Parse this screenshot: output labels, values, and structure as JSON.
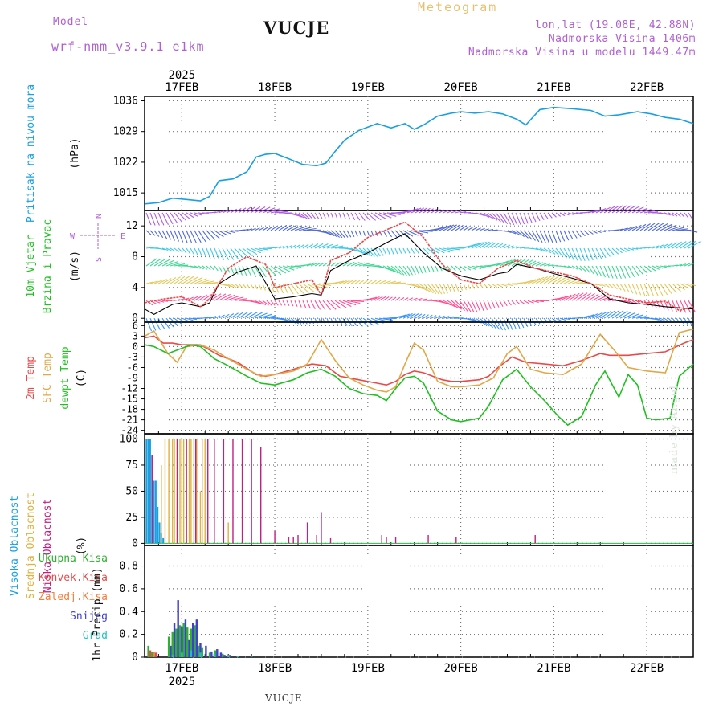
{
  "header": {
    "model_label": "Model",
    "model_name": "wrf-nmm_v3.9.1 e1km",
    "title": "VUCJE",
    "chart_name": "Meteogram",
    "location": "lon,lat (19.08E, 42.88N)",
    "altitude": "Nadmorska Visina 1406m",
    "model_altitude": "Nadmorska Visina u modelu 1449.47m"
  },
  "footer": {
    "station": "VUCJE",
    "credit": "made by Angel"
  },
  "colors": {
    "pressure": "#1aa0e0",
    "temp": "#e84a4a",
    "sfc_temp": "#e0a848",
    "dewpoint": "#20c020",
    "wind_speed": "#000000",
    "wind_gust": "#e84a4a",
    "cloud_high": "#1aa0e0",
    "cloud_mid": "#e0b040",
    "cloud_low": "#c02080",
    "precip_total": "#30b030",
    "precip_conv": "#e84a4a",
    "precip_frz": "#f08040",
    "precip_snow": "#4040d0",
    "precip_graupel": "#20c0c0",
    "grid": "#777777"
  },
  "chart_data": {
    "type": "line",
    "time_axis": {
      "year": "2025",
      "labels": [
        "17FEB",
        "18FEB",
        "19FEB",
        "20FEB",
        "21FEB",
        "22FEB"
      ],
      "start_day": 16.6,
      "end_day": 22.5
    },
    "panels": [
      {
        "id": "pressure",
        "ylabel_parts": [
          "Pritisak na nivou mora",
          "(hPa)"
        ],
        "ylim": [
          1011,
          1037
        ],
        "yticks": [
          "1015",
          "1022",
          "1029",
          "1036"
        ],
        "ytick_values": [
          1015,
          1022,
          1029,
          1036
        ],
        "series": [
          {
            "key": "pressure",
            "day": [
              16.6,
              16.75,
              16.9,
              17.05,
              17.2,
              17.3,
              17.4,
              17.55,
              17.7,
              17.8,
              17.9,
              18.0,
              18.15,
              18.3,
              18.45,
              18.55,
              18.65,
              18.75,
              18.9,
              19.0,
              19.1,
              19.25,
              19.4,
              19.5,
              19.6,
              19.75,
              19.9,
              20.0,
              20.15,
              20.3,
              20.45,
              20.6,
              20.7,
              20.85,
              21.0,
              21.2,
              21.4,
              21.55,
              21.7,
              21.9,
              22.05,
              22.2,
              22.35,
              22.5
            ],
            "values": [
              1012.5,
              1012.8,
              1013.8,
              1013.5,
              1013.2,
              1014.2,
              1017.8,
              1018.2,
              1019.8,
              1023.2,
              1023.8,
              1024.0,
              1022.8,
              1021.5,
              1021.2,
              1021.8,
              1024.5,
              1027.0,
              1029.2,
              1030.0,
              1030.8,
              1029.8,
              1030.8,
              1029.5,
              1030.5,
              1032.5,
              1033.2,
              1033.5,
              1033.2,
              1033.5,
              1033.0,
              1031.8,
              1030.5,
              1034.0,
              1034.5,
              1034.2,
              1033.8,
              1032.5,
              1032.8,
              1033.5,
              1033.0,
              1032.2,
              1031.8,
              1030.8
            ]
          }
        ]
      },
      {
        "id": "wind",
        "ylabel_parts": [
          "10m Vjetar",
          "Brzina i Pravac",
          "(m/s)"
        ],
        "compass": {
          "north": "N",
          "south": "S",
          "east": "E",
          "west": "W"
        },
        "ylim": [
          -0.5,
          14
        ],
        "yticks": [
          "0",
          "4",
          "8",
          "12"
        ],
        "ytick_values": [
          0,
          4,
          8,
          12
        ],
        "barb_levels": [
          0,
          2.3,
          4.5,
          6.8,
          9.1,
          11.4,
          13.7
        ],
        "barb_colors": [
          "#1a80ff",
          "#ff3080",
          "#e0c040",
          "#20d080",
          "#20c0e0",
          "#3050d0",
          "#a040e0"
        ],
        "series": [
          {
            "key": "wind_speed",
            "name": "",
            "day": [
              16.6,
              16.7,
              16.9,
              17.0,
              17.2,
              17.3,
              17.4,
              17.6,
              17.8,
              18.0,
              18.2,
              18.4,
              18.5,
              18.6,
              18.8,
              19.0,
              19.2,
              19.4,
              19.6,
              19.8,
              20.0,
              20.2,
              20.4,
              20.5,
              20.6,
              20.8,
              21.0,
              21.2,
              21.4,
              21.6,
              21.8,
              22.0,
              22.2,
              22.5
            ],
            "values": [
              1.2,
              0.5,
              1.8,
              2.0,
              1.5,
              2.0,
              4.5,
              6.0,
              6.8,
              2.5,
              2.8,
              3.2,
              3.0,
              6.2,
              7.5,
              8.5,
              9.8,
              11.0,
              8.5,
              6.5,
              5.5,
              5.0,
              5.8,
              6.0,
              7.0,
              6.5,
              5.8,
              5.2,
              4.5,
              2.5,
              2.0,
              1.8,
              1.5,
              1.2
            ]
          },
          {
            "key": "wind_gust",
            "name": "",
            "day": [
              16.6,
              16.8,
              17.0,
              17.2,
              17.3,
              17.5,
              17.7,
              17.9,
              18.0,
              18.2,
              18.4,
              18.5,
              18.6,
              18.8,
              19.0,
              19.2,
              19.4,
              19.6,
              19.8,
              20.0,
              20.2,
              20.4,
              20.6,
              20.8,
              21.0,
              21.2,
              21.4,
              21.6,
              21.8,
              22.0,
              22.2,
              22.35,
              22.5
            ],
            "values": [
              2.0,
              2.5,
              2.8,
              1.5,
              2.5,
              6.5,
              8.0,
              7.0,
              4.0,
              4.5,
              5.0,
              3.0,
              7.5,
              8.5,
              10.5,
              11.5,
              12.5,
              10.5,
              7.0,
              5.0,
              4.5,
              6.5,
              7.5,
              6.5,
              6.0,
              5.5,
              4.5,
              3.0,
              2.5,
              2.0,
              2.2,
              1.0,
              1.5
            ]
          }
        ]
      },
      {
        "id": "temperature",
        "ylabel_parts": [
          "2m Temp",
          "SFC Temp",
          "dewpt Temp",
          "(C)"
        ],
        "ylim": [
          -25,
          7
        ],
        "yticks": [
          "6",
          "3",
          "0",
          "-3",
          "-6",
          "-9",
          "-12",
          "-15",
          "-18",
          "-21",
          "-24"
        ],
        "ytick_values": [
          6,
          3,
          0,
          -3,
          -6,
          -9,
          -12,
          -15,
          -18,
          -21,
          -24
        ],
        "series": [
          {
            "key": "temp",
            "name": "2m Temp",
            "day": [
              16.6,
              16.7,
              16.8,
              16.9,
              17.0,
              17.2,
              17.4,
              17.6,
              17.8,
              17.9,
              18.0,
              18.2,
              18.4,
              18.55,
              18.7,
              18.9,
              19.1,
              19.2,
              19.3,
              19.4,
              19.5,
              19.6,
              19.8,
              19.9,
              20.0,
              20.2,
              20.3,
              20.4,
              20.55,
              20.7,
              20.9,
              21.1,
              21.3,
              21.5,
              21.6,
              21.8,
              22.0,
              22.2,
              22.4,
              22.5
            ],
            "values": [
              2.5,
              3.0,
              1.0,
              1.0,
              0.5,
              0.5,
              -2.5,
              -4.5,
              -8.0,
              -8.5,
              -8.0,
              -6.5,
              -5.0,
              -5.5,
              -8.5,
              -9.5,
              -10.5,
              -11.0,
              -10.0,
              -8.0,
              -7.0,
              -7.5,
              -9.5,
              -10.0,
              -10.0,
              -9.5,
              -8.5,
              -6.0,
              -3.0,
              -4.5,
              -5.0,
              -5.5,
              -4.0,
              -2.0,
              -2.5,
              -2.5,
              -2.0,
              -1.5,
              1.0,
              2.0
            ]
          },
          {
            "key": "sfc_temp",
            "name": "SFC Temp",
            "day": [
              16.6,
              16.7,
              16.85,
              16.95,
              17.05,
              17.2,
              17.35,
              17.5,
              17.7,
              17.85,
              18.0,
              18.2,
              18.35,
              18.5,
              18.65,
              18.8,
              18.95,
              19.1,
              19.2,
              19.3,
              19.4,
              19.5,
              19.6,
              19.75,
              19.9,
              20.0,
              20.2,
              20.35,
              20.5,
              20.6,
              20.75,
              20.9,
              21.1,
              21.3,
              21.5,
              21.65,
              21.8,
              22.0,
              22.2,
              22.35,
              22.5
            ],
            "values": [
              3.0,
              4.5,
              -2.0,
              -4.5,
              0.0,
              0.5,
              -1.0,
              -3.5,
              -6.5,
              -8.5,
              -8.0,
              -7.0,
              -5.0,
              2.0,
              -4.0,
              -9.0,
              -11.0,
              -12.5,
              -13.0,
              -11.5,
              -5.0,
              1.0,
              -1.0,
              -10.0,
              -11.5,
              -11.5,
              -11.0,
              -9.0,
              -2.0,
              0.0,
              -6.5,
              -7.5,
              -8.0,
              -5.0,
              3.5,
              -1.0,
              -6.0,
              -7.0,
              -7.5,
              4.0,
              5.0
            ]
          },
          {
            "key": "dewpoint",
            "name": "dewpt Temp",
            "day": [
              16.6,
              16.7,
              16.85,
              16.95,
              17.1,
              17.2,
              17.35,
              17.5,
              17.7,
              17.85,
              18.0,
              18.2,
              18.35,
              18.5,
              18.65,
              18.8,
              18.95,
              19.1,
              19.2,
              19.3,
              19.4,
              19.5,
              19.6,
              19.75,
              19.9,
              20.0,
              20.2,
              20.3,
              20.45,
              20.6,
              20.75,
              20.9,
              21.05,
              21.15,
              21.3,
              21.45,
              21.55,
              21.7,
              21.8,
              21.9,
              22.0,
              22.1,
              22.25,
              22.35,
              22.5
            ],
            "values": [
              0.5,
              0.0,
              -2.0,
              -1.0,
              0.5,
              0.0,
              -3.5,
              -5.5,
              -8.5,
              -10.5,
              -11.0,
              -9.5,
              -7.5,
              -6.5,
              -8.5,
              -12.0,
              -13.5,
              -14.0,
              -15.5,
              -12.0,
              -9.0,
              -8.5,
              -10.5,
              -18.5,
              -21.0,
              -21.5,
              -20.5,
              -17.0,
              -9.5,
              -6.5,
              -11.5,
              -15.5,
              -20.0,
              -22.5,
              -20.0,
              -11.0,
              -7.0,
              -14.5,
              -8.0,
              -11.0,
              -20.5,
              -21.0,
              -20.5,
              -8.5,
              -5.0
            ]
          }
        ]
      },
      {
        "id": "clouds",
        "ylabel_parts": [
          "Visoka Oblacnost",
          "Srednja Oblacnost",
          "Niska Oblacnost",
          "(%)"
        ],
        "ylim": [
          -2,
          105
        ],
        "yticks": [
          "0",
          "25",
          "50",
          "75",
          "100"
        ],
        "ytick_values": [
          0,
          25,
          50,
          75,
          100
        ],
        "series": [
          {
            "key": "cloud_high",
            "name": "Visoka Oblacnost",
            "day": [
              16.62,
              16.64,
              16.66,
              16.68,
              16.7,
              16.72,
              16.74,
              16.76,
              16.78,
              16.8
            ],
            "values": [
              100,
              100,
              100,
              84,
              60,
              60,
              35,
              20,
              10,
              5
            ]
          },
          {
            "key": "cloud_mid",
            "name": "Srednja Oblacnost",
            "day": [
              16.78,
              16.82,
              16.86,
              16.9,
              16.92,
              16.95,
              16.98,
              17.0,
              17.02,
              17.05,
              17.08,
              17.1,
              17.13,
              17.16,
              17.2,
              17.22,
              17.25,
              17.5
            ],
            "values": [
              75,
              100,
              100,
              100,
              100,
              100,
              100,
              100,
              100,
              100,
              100,
              100,
              100,
              100,
              50,
              100,
              100,
              20
            ]
          },
          {
            "key": "cloud_low",
            "name": "Niska Oblacnost",
            "day": [
              16.68,
              16.95,
              17.05,
              17.15,
              17.28,
              17.35,
              17.45,
              17.55,
              17.65,
              17.75,
              17.85,
              18.0,
              18.15,
              18.2,
              18.25,
              18.35,
              18.45,
              18.5,
              18.6,
              19.15,
              19.2,
              19.3,
              19.65,
              19.95,
              20.8
            ],
            "values": [
              85,
              100,
              100,
              100,
              100,
              100,
              100,
              100,
              100,
              100,
              92,
              12,
              6,
              6,
              8,
              20,
              8,
              30,
              5,
              8,
              6,
              6,
              8,
              6,
              8
            ]
          }
        ]
      },
      {
        "id": "precip",
        "ylabel_parts": [
          "Ukupna Kisa",
          "Konvek.Kisa",
          "Zaledj.Kisa",
          "Snijeg",
          "Grad",
          "1hr Precip (mm)"
        ],
        "ylim": [
          0,
          0.98
        ],
        "yticks": [
          "0",
          "0.2",
          "0.4",
          "0.6",
          "0.8"
        ],
        "ytick_values": [
          0,
          0.2,
          0.4,
          0.6,
          0.8
        ],
        "series": [
          {
            "key": "precip_total",
            "name": "Ukupna Kisa",
            "day": [
              16.64,
              16.68,
              16.86,
              16.9,
              16.94,
              16.98,
              17.02,
              17.06,
              17.1,
              17.14,
              17.18,
              17.22,
              17.3,
              17.36,
              17.44
            ],
            "values": [
              0.1,
              0.05,
              0.18,
              0.22,
              0.25,
              0.28,
              0.3,
              0.26,
              0.25,
              0.28,
              0.1,
              0.08,
              0.04,
              0.06,
              0.03
            ]
          },
          {
            "key": "precip_conv",
            "name": "Konvek.Kisa",
            "day": [
              16.66,
              16.72
            ],
            "values": [
              0.06,
              0.04
            ]
          },
          {
            "key": "precip_frz",
            "name": "Zaledj.Kisa",
            "day": [
              16.7
            ],
            "values": [
              0.05
            ]
          },
          {
            "key": "precip_snow",
            "name": "Snijeg",
            "day": [
              16.88,
              16.92,
              16.96,
              17.0,
              17.04,
              17.08,
              17.12,
              17.16,
              17.2,
              17.26,
              17.32,
              17.38,
              17.42,
              17.46,
              17.52,
              17.6
            ],
            "values": [
              0.1,
              0.3,
              0.5,
              0.27,
              0.33,
              0.15,
              0.3,
              0.33,
              0.12,
              0.1,
              0.05,
              0.07,
              0.04,
              0.02,
              0.02,
              0.01
            ]
          },
          {
            "key": "precip_graupel",
            "name": "Grad",
            "day": [
              16.9,
              17.0,
              17.1,
              17.2,
              17.35,
              17.5,
              17.6,
              17.75
            ],
            "values": [
              0.02,
              0.04,
              0.06,
              0.04,
              0.03,
              0.02,
              0.01,
              0.005
            ]
          }
        ]
      }
    ]
  }
}
